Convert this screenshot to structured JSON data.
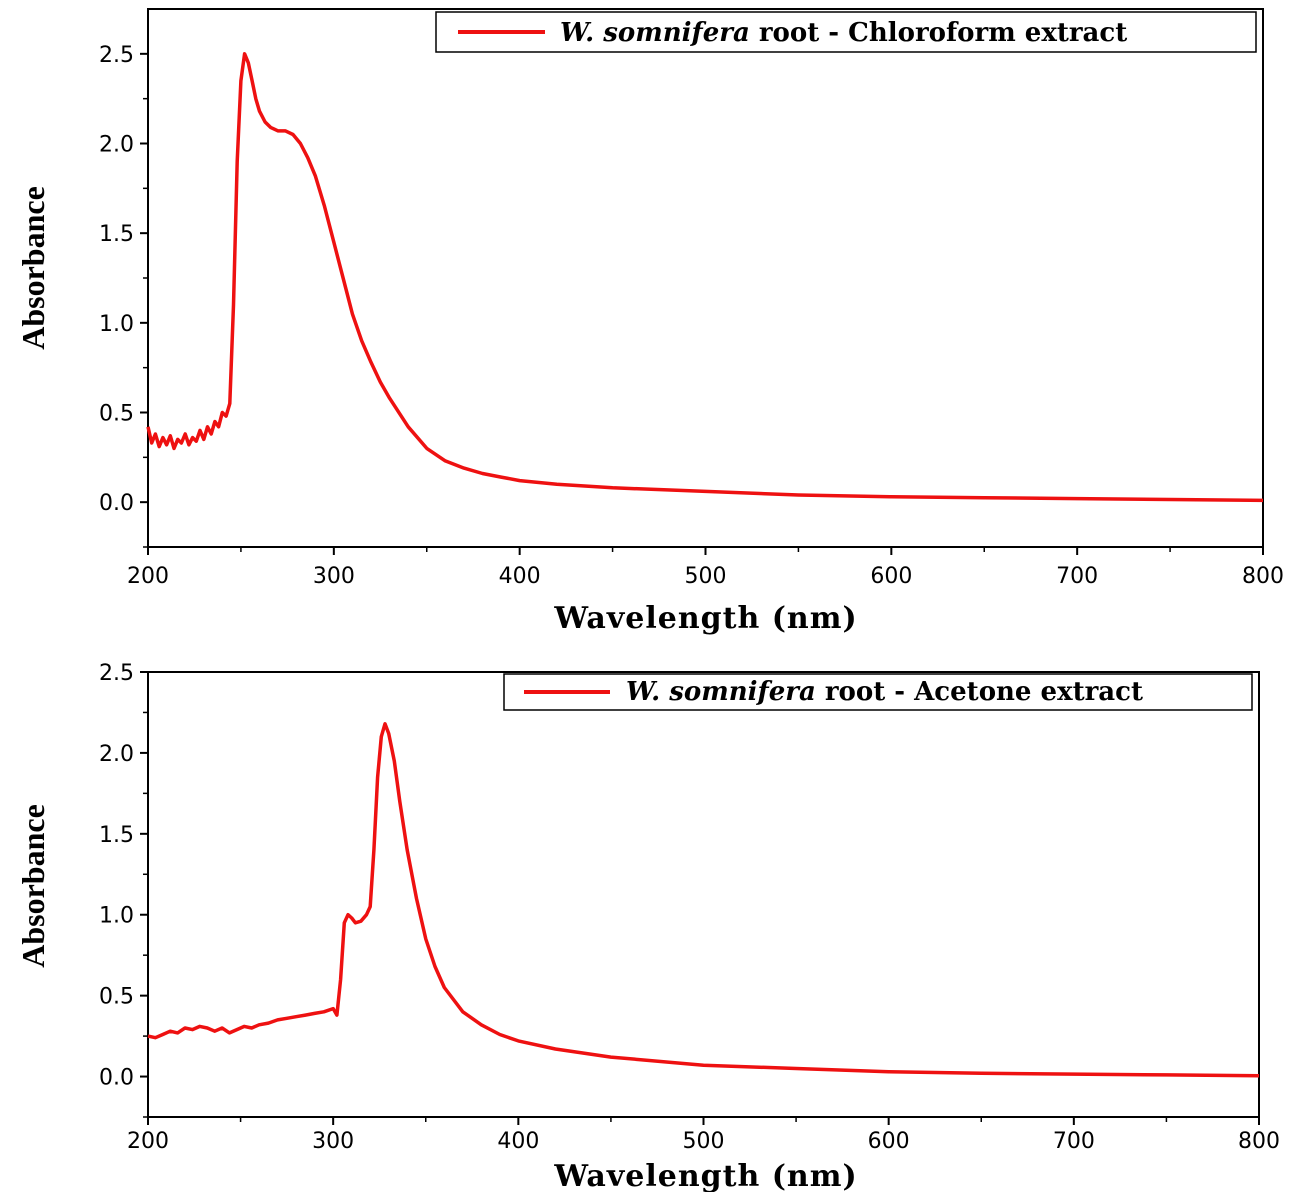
{
  "chart_data": [
    {
      "type": "line",
      "xlabel": "Wavelength (nm)",
      "ylabel": "Absorbance",
      "xlim": [
        200,
        800
      ],
      "ylim": [
        -0.25,
        2.75
      ],
      "xticks": [
        "200",
        "300",
        "400",
        "500",
        "600",
        "700",
        "800"
      ],
      "yticks": [
        "0.0",
        "0.5",
        "1.0",
        "1.5",
        "2.0",
        "2.5"
      ],
      "ytick_values": [
        0.0,
        0.5,
        1.0,
        1.5,
        2.0,
        2.5
      ],
      "grid": false,
      "legend_position": "top-right",
      "legend": {
        "italic_part": "W. somnifera",
        "rest": " root - Chloroform extract"
      },
      "series": [
        {
          "name": "W. somnifera root - Chloroform extract",
          "color": "#ee1111",
          "x": [
            200,
            202,
            204,
            206,
            208,
            210,
            212,
            214,
            216,
            218,
            220,
            222,
            224,
            226,
            228,
            230,
            232,
            234,
            236,
            238,
            240,
            242,
            244,
            246,
            248,
            250,
            252,
            254,
            256,
            258,
            260,
            263,
            266,
            270,
            274,
            278,
            282,
            286,
            290,
            295,
            300,
            305,
            310,
            315,
            320,
            325,
            330,
            340,
            350,
            360,
            370,
            380,
            390,
            400,
            420,
            450,
            500,
            550,
            600,
            650,
            700,
            750,
            800
          ],
          "y": [
            0.42,
            0.33,
            0.38,
            0.31,
            0.36,
            0.32,
            0.37,
            0.3,
            0.35,
            0.33,
            0.38,
            0.32,
            0.36,
            0.34,
            0.4,
            0.35,
            0.42,
            0.38,
            0.45,
            0.42,
            0.5,
            0.48,
            0.55,
            1.1,
            1.9,
            2.35,
            2.5,
            2.45,
            2.35,
            2.25,
            2.18,
            2.12,
            2.09,
            2.07,
            2.07,
            2.05,
            2.0,
            1.92,
            1.82,
            1.65,
            1.45,
            1.25,
            1.05,
            0.9,
            0.78,
            0.67,
            0.58,
            0.42,
            0.3,
            0.23,
            0.19,
            0.16,
            0.14,
            0.12,
            0.1,
            0.08,
            0.06,
            0.04,
            0.03,
            0.025,
            0.02,
            0.015,
            0.01
          ]
        }
      ]
    },
    {
      "type": "line",
      "xlabel": "Wavelength (nm)",
      "ylabel": "Absorbance",
      "xlim": [
        200,
        800
      ],
      "ylim": [
        -0.25,
        2.5
      ],
      "xticks": [
        "200",
        "300",
        "400",
        "500",
        "600",
        "700",
        "800"
      ],
      "yticks": [
        "0.0",
        "0.5",
        "1.0",
        "1.5",
        "2.0",
        "2.5"
      ],
      "ytick_values": [
        0.0,
        0.5,
        1.0,
        1.5,
        2.0,
        2.5
      ],
      "grid": false,
      "legend_position": "top-right",
      "legend": {
        "italic_part": "W. somnifera",
        "rest": " root - Acetone extract"
      },
      "series": [
        {
          "name": "W. somnifera root - Acetone extract",
          "color": "#ee1111",
          "x": [
            200,
            204,
            208,
            212,
            216,
            220,
            224,
            228,
            232,
            236,
            240,
            244,
            248,
            252,
            256,
            260,
            265,
            270,
            275,
            280,
            285,
            290,
            295,
            300,
            302,
            304,
            306,
            308,
            310,
            312,
            315,
            318,
            320,
            322,
            324,
            326,
            328,
            330,
            333,
            336,
            340,
            345,
            350,
            355,
            360,
            370,
            380,
            390,
            400,
            420,
            450,
            500,
            550,
            600,
            650,
            700,
            750,
            800
          ],
          "y": [
            0.25,
            0.24,
            0.26,
            0.28,
            0.27,
            0.3,
            0.29,
            0.31,
            0.3,
            0.28,
            0.3,
            0.27,
            0.29,
            0.31,
            0.3,
            0.32,
            0.33,
            0.35,
            0.36,
            0.37,
            0.38,
            0.39,
            0.4,
            0.42,
            0.38,
            0.6,
            0.95,
            1.0,
            0.98,
            0.95,
            0.96,
            1.0,
            1.05,
            1.4,
            1.85,
            2.1,
            2.18,
            2.12,
            1.95,
            1.7,
            1.4,
            1.1,
            0.85,
            0.68,
            0.55,
            0.4,
            0.32,
            0.26,
            0.22,
            0.17,
            0.12,
            0.07,
            0.05,
            0.03,
            0.02,
            0.015,
            0.01,
            0.005
          ]
        }
      ]
    }
  ]
}
